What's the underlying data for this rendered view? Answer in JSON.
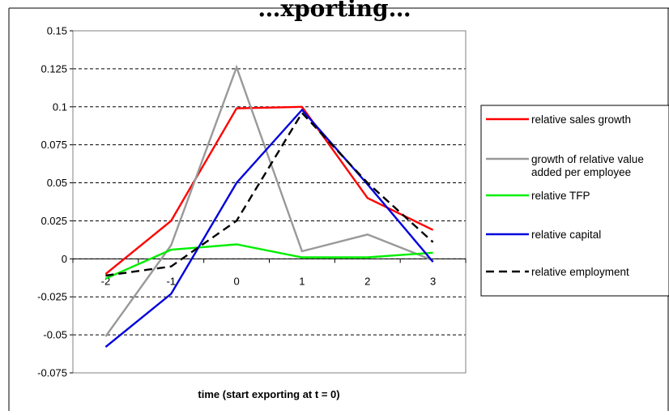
{
  "chart_data": {
    "type": "line",
    "title": "…xporting…",
    "xlabel": "time (start exporting at t = 0)",
    "ylabel": "",
    "x": [
      -2,
      -1,
      0,
      1,
      2,
      3
    ],
    "x_tick_labels": [
      "-2",
      "-1",
      "0",
      "1",
      "2",
      "3"
    ],
    "ylim": [
      -0.075,
      0.15
    ],
    "y_ticks": [
      0.15,
      0.125,
      0.1,
      0.075,
      0.05,
      0.025,
      0,
      -0.025,
      -0.05,
      -0.075
    ],
    "y_tick_labels": [
      "0.15",
      "0.125",
      "0.1",
      "0.075",
      "0.05",
      "0.025",
      "0",
      "-0.025",
      "-0.05",
      "-0.075"
    ],
    "grid": "horizontal dashed",
    "legend_position": "right",
    "series": [
      {
        "name": "relative sales growth",
        "label_lines": [
          "relative sales growth"
        ],
        "color": "#ff0000",
        "dash": "solid",
        "values": [
          -0.01,
          0.025,
          0.099,
          0.1,
          0.04,
          0.019
        ]
      },
      {
        "name": "growth of relative value added per employee",
        "label_lines": [
          "growth of relative value",
          "added per employee"
        ],
        "color": "#999999",
        "dash": "solid",
        "values": [
          -0.051,
          0.009,
          0.126,
          0.005,
          0.016,
          -0.001
        ]
      },
      {
        "name": "relative TFP",
        "label_lines": [
          "relative TFP"
        ],
        "color": "#00ee00",
        "dash": "solid",
        "values": [
          -0.013,
          0.006,
          0.0095,
          0.001,
          0.001,
          0.004
        ]
      },
      {
        "name": "relative capital",
        "label_lines": [
          "relative capital"
        ],
        "color": "#0000dd",
        "dash": "solid",
        "values": [
          -0.058,
          -0.023,
          0.05,
          0.098,
          0.049,
          -0.002
        ]
      },
      {
        "name": "relative employment",
        "label_lines": [
          "relative employment"
        ],
        "color": "#000000",
        "dash": "dashed",
        "values": [
          -0.011,
          -0.005,
          0.025,
          0.096,
          0.05,
          0.011
        ]
      }
    ]
  }
}
